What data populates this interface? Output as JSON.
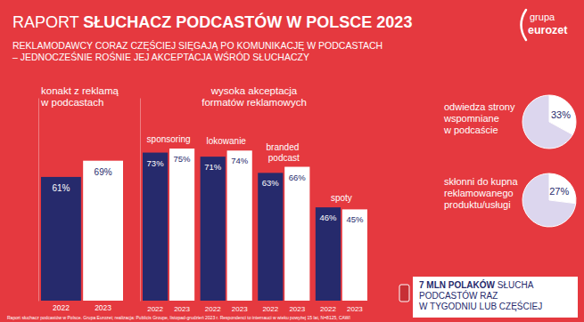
{
  "title": "RAPORT SŁUCHACZ PODCASTÓW W POLSCE 2023",
  "subtitle": [
    "REKLAMODAWCY CORAZ CZĘŚCIEJ SIĘGAJĄ PO KOMUNIKACJĘ W PODCASTACH",
    "– JEDNOCZEŚNIE ROŚNIE JEJ AKCEPTACJA WŚRÓD SŁUCHACZY"
  ],
  "logo": [
    "grupa",
    "eurozet"
  ],
  "callout": [
    "7 MLN POLAKÓW SŁUCHA",
    "PODCASTÓW RAZ",
    "W TYGODNIU LUB CZĘŚCIEJ"
  ],
  "source": "Raport słuchacz podcastów w Polsce. Grupa Eurozet; realizacja: Publicis Groupe, listopad-grudzień 2023 r. Respondenci to internauci w wieku powyżej 15 lat, N=8125, CAWI",
  "chart_data": [
    {
      "type": "bar",
      "title": [
        "konakt z reklamą",
        "w podcastach"
      ],
      "categories": [
        "2022",
        "2023"
      ],
      "values": [
        61,
        69
      ],
      "value_labels": [
        "61%",
        "69%"
      ],
      "colors": [
        "#262a6c",
        "#ffffff"
      ],
      "ylim": [
        0,
        100
      ],
      "data_labels": true,
      "tick_labels": "x"
    },
    {
      "type": "bar",
      "title": [
        "wysoka akceptacja",
        "formatów reklamowych"
      ],
      "categories": [
        "sponsoring",
        "lokowanie",
        "branded podcast",
        "spoty"
      ],
      "series": [
        {
          "name": "2022",
          "color": "#262a6c",
          "values": [
            73,
            71,
            63,
            46
          ],
          "value_labels": [
            "73%",
            "71%",
            "63%",
            "46%"
          ]
        },
        {
          "name": "2023",
          "color": "#ffffff",
          "values": [
            75,
            74,
            66,
            45
          ],
          "value_labels": [
            "75%",
            "74%",
            "66%",
            "45%"
          ]
        }
      ],
      "ylim": [
        0,
        100
      ],
      "data_labels": true,
      "tick_labels": "x"
    },
    {
      "type": "pie",
      "title": [
        "odwiedza strony",
        "wspomniane",
        "w podcaście"
      ],
      "values": [
        33,
        67
      ],
      "value_labels": [
        "33%",
        null
      ],
      "colors": [
        "#ffffff",
        "#dcd6ee"
      ],
      "data_labels": true
    },
    {
      "type": "pie",
      "title": [
        "skłonni do kupna",
        "reklamowanego",
        "produktu/usługi"
      ],
      "values": [
        27,
        73
      ],
      "value_labels": [
        "27%",
        null
      ],
      "colors": [
        "#ffffff",
        "#dcd6ee"
      ],
      "data_labels": true
    }
  ]
}
